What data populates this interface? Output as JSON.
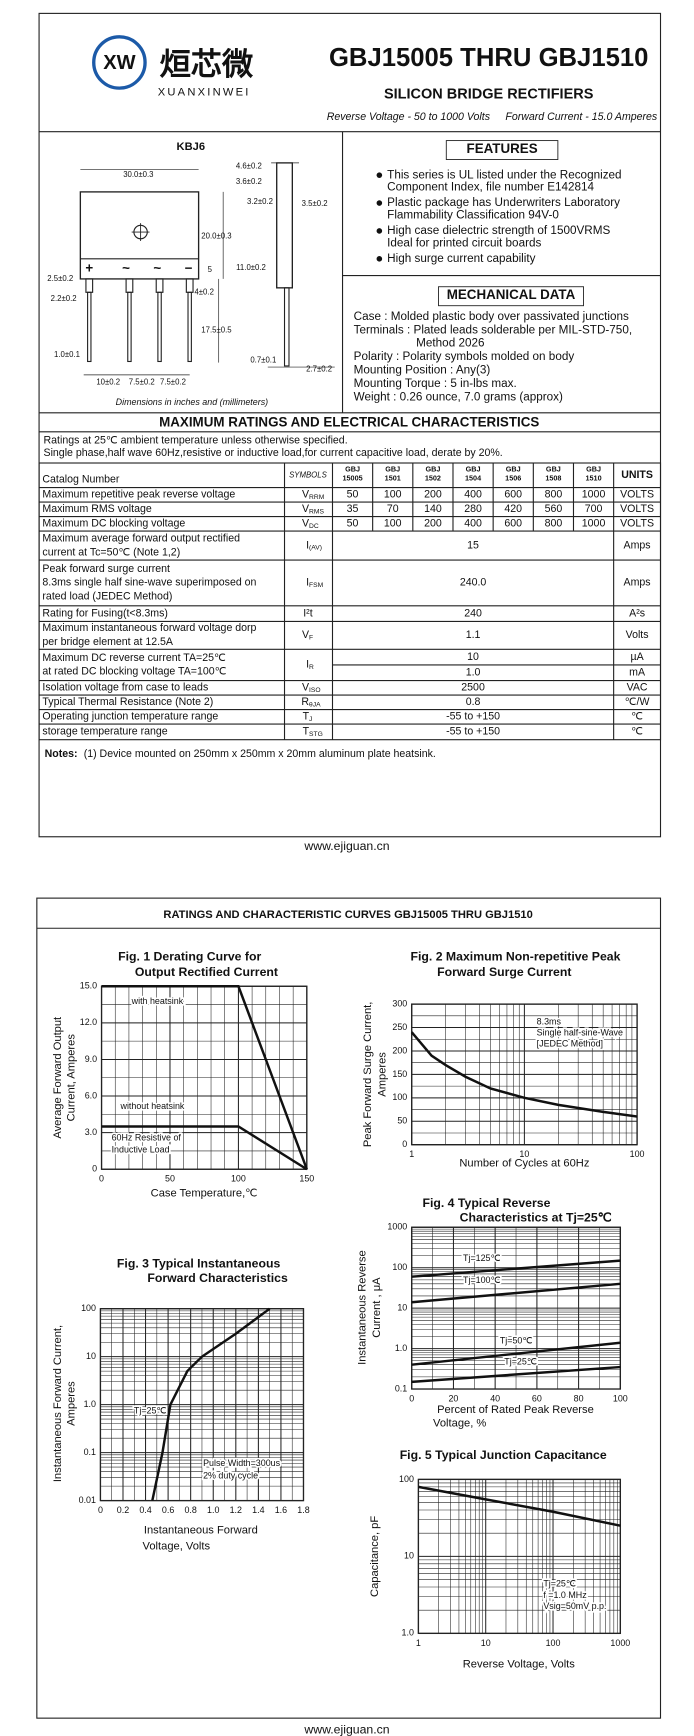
{
  "header": {
    "logo_mark": "XW",
    "logo_cn": "烜芯微",
    "logo_en": "XUANXINWEI",
    "title": "GBJ15005 THRU GBJ1510",
    "subtitle": "SILICON BRIDGE RECTIFIERS",
    "spec_voltage": "Reverse Voltage - 50 to 1000 Volts",
    "spec_current": "Forward Current - 15.0 Amperes"
  },
  "package": {
    "name": "KBJ6",
    "signs": [
      "+",
      "~",
      "~",
      "−"
    ],
    "dims": [
      "30.0±0.3",
      "4.6±0.2",
      "3.6±0.2",
      "3.2±0.2",
      "3.5±0.2",
      "20.0±0.3",
      "11.0±0.2",
      "5",
      "4±0.2",
      "17.5±0.5",
      "2.5±0.2",
      "2.2±0.2",
      "1.0±0.1",
      "10±0.2",
      "7.5±0.2",
      "7.5±0.2",
      "0.7±0.1",
      "2.7±0.2"
    ],
    "caption": "Dimensions in inches and (millimeters)"
  },
  "features": {
    "title": "FEATURES",
    "items": [
      [
        "This series is UL listed under the Recognized",
        "Component Index, file number E142814"
      ],
      [
        "Plastic package has Underwriters Laboratory",
        "Flammability Classification 94V-0"
      ],
      [
        "High case dielectric strength of 1500VRMS",
        "Ideal for printed circuit boards"
      ],
      [
        "High surge current capability"
      ]
    ]
  },
  "mechanical": {
    "title": "MECHANICAL DATA",
    "lines": [
      "Case : Molded plastic body over passivated junctions",
      "Terminals : Plated leads solderable per MIL-STD-750,",
      "Method 2026",
      "Polarity : Polarity symbols molded on body",
      "Mounting Position : Any(3)",
      "Mounting Torque : 5 in-lbs max.",
      "Weight : 0.26 ounce, 7.0 grams (approx)"
    ]
  },
  "ratings": {
    "title": "MAXIMUM RATINGS AND ELECTRICAL CHARACTERISTICS",
    "notes": [
      "Ratings at 25℃ ambient temperature unless otherwise specified.",
      "Single phase,half wave 60Hz,resistive or inductive load,for current capacitive load, derate by 20%."
    ],
    "table": {
      "header": {
        "catalog": "Catalog Number",
        "symbols": "SYMBOLS",
        "devices": [
          [
            "GBJ",
            "15005"
          ],
          [
            "GBJ",
            "1501"
          ],
          [
            "GBJ",
            "1502"
          ],
          [
            "GBJ",
            "1504"
          ],
          [
            "GBJ",
            "1506"
          ],
          [
            "GBJ",
            "1508"
          ],
          [
            "GBJ",
            "1510"
          ]
        ],
        "units": "UNITS"
      },
      "rows": [
        {
          "param": [
            "Maximum repetitive peak reverse voltage"
          ],
          "symbol": {
            "main": "V",
            "sub": "RRM"
          },
          "values": [
            "50",
            "100",
            "200",
            "400",
            "600",
            "800",
            "1000"
          ],
          "unit": "VOLTS"
        },
        {
          "param": [
            "Maximum RMS voltage"
          ],
          "symbol": {
            "main": "V",
            "sub": "RMS"
          },
          "values": [
            "35",
            "70",
            "140",
            "280",
            "420",
            "560",
            "700"
          ],
          "unit": "VOLTS"
        },
        {
          "param": [
            "Maximum DC blocking voltage"
          ],
          "symbol": {
            "main": "V",
            "sub": "DC"
          },
          "values": [
            "50",
            "100",
            "200",
            "400",
            "600",
            "800",
            "1000"
          ],
          "unit": "VOLTS"
        },
        {
          "param": [
            "Maximum average forward output rectified",
            "current at  Tc=50℃  (Note 1,2)"
          ],
          "symbol": {
            "main": "I",
            "sub": "(AV)"
          },
          "value": "15",
          "unit": "Amps"
        },
        {
          "param": [
            "Peak forward surge current",
            "8.3ms single half sine-wave superimposed on",
            "rated load (JEDEC Method)"
          ],
          "symbol": {
            "main": "I",
            "sub": "FSM"
          },
          "value": "240.0",
          "unit": "Amps"
        },
        {
          "param": [
            "Rating for Fusing(t<8.3ms)"
          ],
          "symbol": {
            "main": "I²t"
          },
          "value": "240",
          "unit": "A²s"
        },
        {
          "param": [
            "Maximum instantaneous forward voltage dorp",
            "per bridge element at 12.5A"
          ],
          "symbol": {
            "main": "V",
            "sub": "F"
          },
          "value": "1.1",
          "unit": "Volts"
        },
        {
          "param": [
            "Maximum DC reverse current        TA=25℃",
            "at rated DC blocking voltage       TA=100℃"
          ],
          "symbol": {
            "main": "I",
            "sub": "R"
          },
          "values": [
            "10",
            "1.0"
          ],
          "units": [
            "µA",
            "mA"
          ]
        },
        {
          "param": [
            "Isolation voltage from case to leads"
          ],
          "symbol": {
            "main": "V",
            "sub": "ISO"
          },
          "value": "2500",
          "unit": "VAC"
        },
        {
          "param": [
            "Typical Thermal Resistance (Note 2)"
          ],
          "symbol": {
            "main": "R",
            "sub": "θJA"
          },
          "value": "0.8",
          "unit": "℃/W"
        },
        {
          "param": [
            "Operating junction temperature range"
          ],
          "symbol": {
            "main": "T",
            "sub": "J"
          },
          "value": "-55 to +150",
          "unit": "℃"
        },
        {
          "param": [
            "storage temperature range"
          ],
          "symbol": {
            "main": "T",
            "sub": "STG"
          },
          "value": "-55 to +150",
          "unit": "℃"
        }
      ]
    },
    "footnote_label": "Notes:",
    "footnote": "(1) Device mounted on 250mm x 250mm x 20mm aluminum plate heatsink."
  },
  "footer_1": "www.ejiguan.cn",
  "curves": {
    "title": "RATINGS AND CHARACTERISTIC CURVES GBJ15005 THRU GBJ1510",
    "figures": [
      {
        "title": [
          "Fig. 1 Derating Curve for",
          "Output Rectified Current"
        ],
        "ylabel": [
          "Average Forward Output",
          "Current, Amperes"
        ],
        "xlabel": [
          "Case Temperature,℃"
        ],
        "xticks": [
          "0",
          "50",
          "100",
          "150"
        ],
        "yticks": [
          "0",
          "3.0",
          "6.0",
          "9.0",
          "12.0",
          "15.0"
        ],
        "annotations": [
          "with heatsink",
          "without heatsink",
          "60Hz Resistive of",
          "Inductive Load"
        ]
      },
      {
        "title": [
          "Fig. 2 Maximum Non-repetitive Peak",
          "Forward Surge Current"
        ],
        "ylabel": [
          "Peak Forward Surge Current,",
          "Amperes"
        ],
        "xlabel": [
          "Number of Cycles at 60Hz"
        ],
        "xticks": [
          "1",
          "10",
          "100"
        ],
        "yticks": [
          "0",
          "50",
          "100",
          "150",
          "200",
          "250",
          "300"
        ],
        "annotations": [
          "8.3ms",
          "Single half-sine-Wave",
          "[JEDEC Method]"
        ]
      },
      {
        "title": [
          "Fig. 3 Typical Instantaneous",
          "Forward Characteristics"
        ],
        "ylabel": [
          "Instantaneous Forward Current,",
          "Amperes"
        ],
        "xlabel": [
          "Instantaneous Forward",
          "Voltage, Volts"
        ],
        "xticks": [
          "0",
          "0.2",
          "0.4",
          "0.6",
          "0.8",
          "1.0",
          "1.2",
          "1.4",
          "1.6",
          "1.8"
        ],
        "yticks": [
          "0.01",
          "0.1",
          "1.0",
          "10",
          "100"
        ],
        "annotations": [
          "Tj=25℃",
          "Pulse Width=300us",
          "2% duty cycle"
        ]
      },
      {
        "title": [
          "Fig. 4 Typical Reverse",
          "Characteristics at Tj=25℃"
        ],
        "ylabel": [
          "Instantaneous Reverse",
          "Current , μA"
        ],
        "xlabel": [
          "Percent of Rated Peak Reverse",
          "Voltage, %"
        ],
        "xticks": [
          "0",
          "20",
          "40",
          "60",
          "80",
          "100"
        ],
        "yticks": [
          "0.1",
          "1.0",
          "10",
          "100",
          "1000"
        ],
        "annotations": [
          "Tj=125℃",
          "Tj=100℃",
          "Tj=50℃",
          "Tj=25℃"
        ]
      },
      {
        "title": [
          "Fig. 5 Typical Junction Capacitance"
        ],
        "ylabel": [
          "Capacitance, pF"
        ],
        "xlabel": [
          "Reverse Voltage, Volts"
        ],
        "xticks": [
          "1",
          "10",
          "100",
          "1000"
        ],
        "yticks": [
          "1.0",
          "10",
          "100"
        ],
        "annotations": [
          "Tj=25℃",
          "f =1.0 MHz",
          "Vsig=50mV p.p."
        ]
      }
    ]
  },
  "footer_2": "www.ejiguan.cn"
}
